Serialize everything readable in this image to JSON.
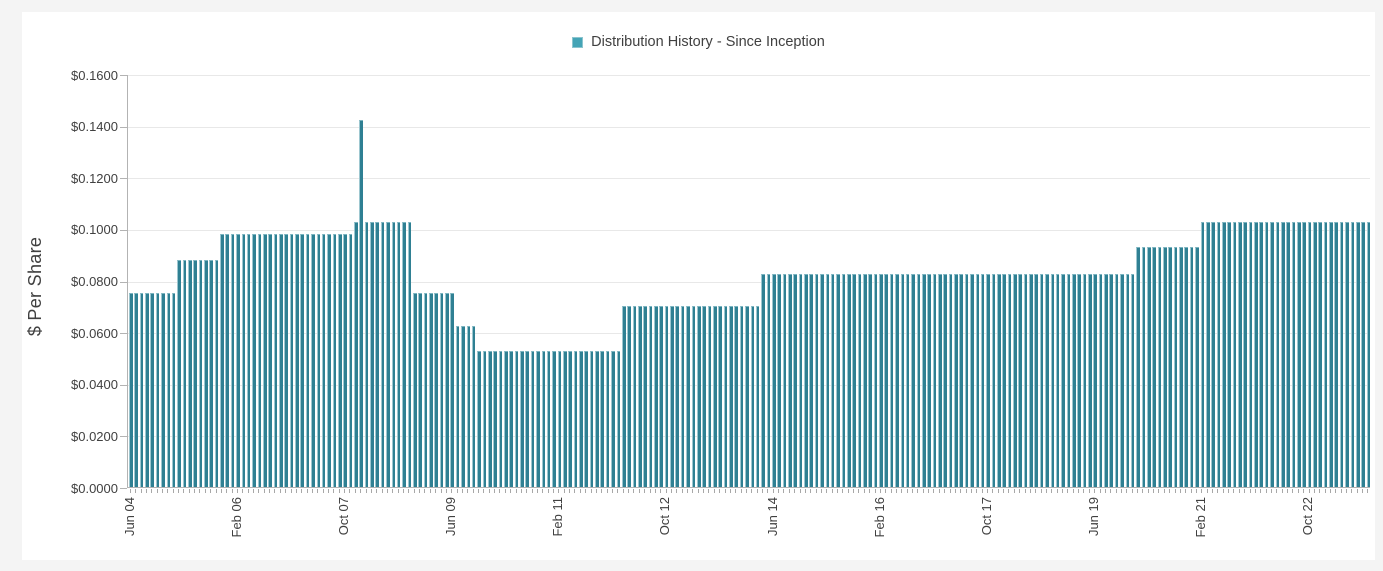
{
  "page": {
    "background": "#f4f4f4",
    "card_background": "#ffffff"
  },
  "legend": {
    "label": "Distribution History - Since Inception",
    "swatch_color": "#44a4b6",
    "swatch_border": "#8cc5cf"
  },
  "y_axis": {
    "title": "$ Per Share",
    "tick_labels": [
      "$0.1600",
      "$0.1400",
      "$0.1200",
      "$0.1000",
      "$0.0800",
      "$0.0600",
      "$0.0400",
      "$0.0200",
      "$0.0000"
    ],
    "min": 0,
    "max": 0.16,
    "step": 0.02
  },
  "x_axis": {
    "tick_labels": [
      "Jun 04",
      "Feb 06",
      "Oct 07",
      "Jun 09",
      "Feb 11",
      "Oct 12",
      "Jun 14",
      "Feb 16",
      "Oct 17",
      "Jun 19",
      "Feb 21",
      "Oct 22"
    ],
    "tick_interval_months": 20
  },
  "chart_data": {
    "type": "bar",
    "title": "Distribution History - Since Inception",
    "xlabel": "",
    "ylabel": "$ Per Share",
    "ylim": [
      0,
      0.16
    ],
    "grid": true,
    "legend_position": "top-center",
    "frequency": "monthly",
    "x_start": "Jun 2004",
    "x_end": "Sep 2023",
    "n_bars": 232,
    "bar_color": "#2f8093",
    "bar_edge_color": "#9dc7d0",
    "x_tick_labels": [
      "Jun 04",
      "Feb 06",
      "Oct 07",
      "Jun 09",
      "Feb 11",
      "Oct 12",
      "Jun 14",
      "Feb 16",
      "Oct 17",
      "Jun 19",
      "Feb 21",
      "Oct 22"
    ],
    "x_tick_every_n_months": 20,
    "segments": [
      {
        "start": "Jun 2004",
        "count": 9,
        "value": 0.075
      },
      {
        "start": "Mar 2005",
        "count": 8,
        "value": 0.088
      },
      {
        "start": "Nov 2005",
        "count": 25,
        "value": 0.098
      },
      {
        "start": "Dec 2007",
        "count": 1,
        "value": 0.1025
      },
      {
        "start": "Jan 2008",
        "count": 1,
        "value": 0.142
      },
      {
        "start": "Feb 2008",
        "count": 9,
        "value": 0.1025
      },
      {
        "start": "Nov 2008",
        "count": 8,
        "value": 0.075
      },
      {
        "start": "Jul 2009",
        "count": 4,
        "value": 0.0625
      },
      {
        "start": "Nov 2009",
        "count": 27,
        "value": 0.0525
      },
      {
        "start": "Feb 2012",
        "count": 26,
        "value": 0.07
      },
      {
        "start": "Apr 2014",
        "count": 70,
        "value": 0.0825
      },
      {
        "start": "Feb 2020",
        "count": 12,
        "value": 0.093
      },
      {
        "start": "Feb 2021",
        "count": 32,
        "value": 0.1025
      }
    ]
  }
}
